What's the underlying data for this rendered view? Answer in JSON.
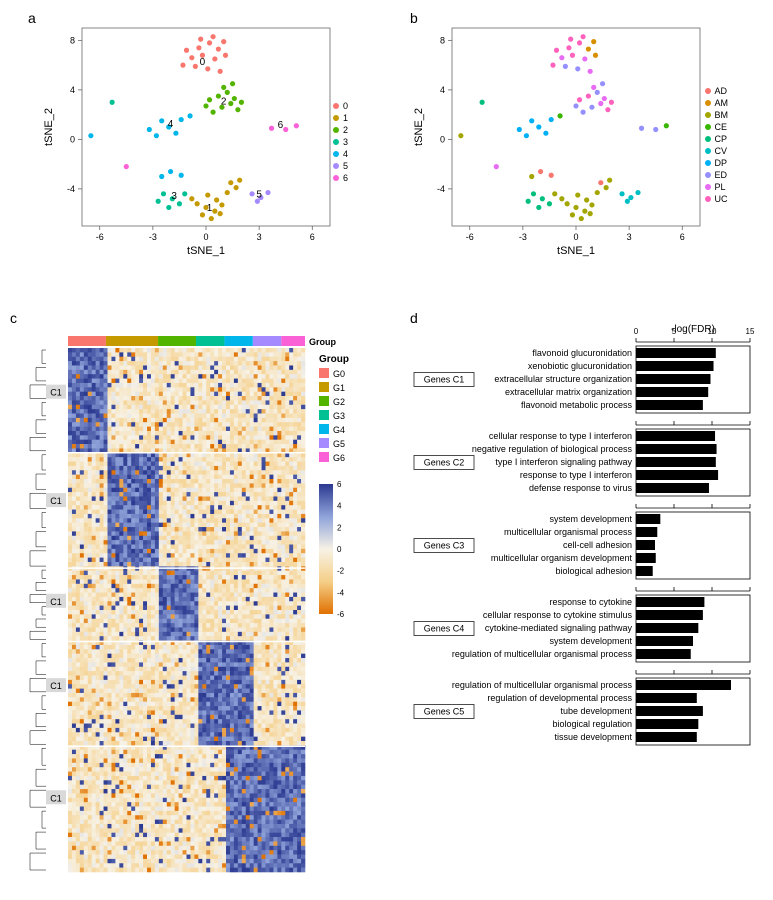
{
  "panels": {
    "a": "a",
    "b": "b",
    "c": "c",
    "d": "d"
  },
  "scatter": {
    "xlim": [
      -7,
      7
    ],
    "ylim": [
      -7,
      9
    ],
    "xticks": [
      -6,
      -3,
      0,
      3,
      6
    ],
    "yticks": [
      -4,
      0,
      4,
      8
    ],
    "xlabel": "tSNE_1",
    "ylabel": "tSNE_2"
  },
  "panelA": {
    "legend_title": "",
    "clusters": [
      "0",
      "1",
      "2",
      "3",
      "4",
      "5",
      "6"
    ],
    "cluster_colors": {
      "0": "#f8766d",
      "1": "#c49a00",
      "2": "#53b400",
      "3": "#00c094",
      "4": "#00b6eb",
      "5": "#a58aff",
      "6": "#fb61d7"
    },
    "cluster_label_pos": {
      "0": [
        -0.2,
        6.0
      ],
      "1": [
        0.2,
        -5.8
      ],
      "2": [
        1.0,
        2.8
      ],
      "3": [
        -1.8,
        -4.8
      ],
      "4": [
        -2.0,
        1.0
      ],
      "5": [
        3.0,
        -4.7
      ],
      "6": [
        4.2,
        0.9
      ]
    },
    "points": [
      {
        "x": -1.1,
        "y": 7.2,
        "c": "0"
      },
      {
        "x": -0.4,
        "y": 7.4,
        "c": "0"
      },
      {
        "x": 0.2,
        "y": 7.8,
        "c": "0"
      },
      {
        "x": 0.7,
        "y": 7.3,
        "c": "0"
      },
      {
        "x": -0.8,
        "y": 6.6,
        "c": "0"
      },
      {
        "x": -0.2,
        "y": 6.8,
        "c": "0"
      },
      {
        "x": 0.5,
        "y": 6.5,
        "c": "0"
      },
      {
        "x": 1.1,
        "y": 6.8,
        "c": "0"
      },
      {
        "x": -1.3,
        "y": 6.0,
        "c": "0"
      },
      {
        "x": -0.6,
        "y": 5.9,
        "c": "0"
      },
      {
        "x": 0.1,
        "y": 5.7,
        "c": "0"
      },
      {
        "x": 0.8,
        "y": 5.5,
        "c": "0"
      },
      {
        "x": -0.3,
        "y": 8.1,
        "c": "0"
      },
      {
        "x": 0.4,
        "y": 8.3,
        "c": "0"
      },
      {
        "x": 1.0,
        "y": 7.9,
        "c": "0"
      },
      {
        "x": -0.5,
        "y": -5.2,
        "c": "1"
      },
      {
        "x": 0.0,
        "y": -5.5,
        "c": "1"
      },
      {
        "x": 0.5,
        "y": -5.8,
        "c": "1"
      },
      {
        "x": 0.9,
        "y": -5.3,
        "c": "1"
      },
      {
        "x": -0.2,
        "y": -6.1,
        "c": "1"
      },
      {
        "x": 0.3,
        "y": -6.4,
        "c": "1"
      },
      {
        "x": 0.8,
        "y": -6.0,
        "c": "1"
      },
      {
        "x": -0.8,
        "y": -4.8,
        "c": "1"
      },
      {
        "x": 0.1,
        "y": -4.5,
        "c": "1"
      },
      {
        "x": 1.2,
        "y": -4.3,
        "c": "1"
      },
      {
        "x": 0.6,
        "y": -4.9,
        "c": "1"
      },
      {
        "x": 1.4,
        "y": -3.5,
        "c": "1"
      },
      {
        "x": 1.7,
        "y": -3.9,
        "c": "1"
      },
      {
        "x": 1.9,
        "y": -3.3,
        "c": "1"
      },
      {
        "x": 0.4,
        "y": 2.2,
        "c": "2"
      },
      {
        "x": 0.9,
        "y": 2.6,
        "c": "2"
      },
      {
        "x": 1.4,
        "y": 2.9,
        "c": "2"
      },
      {
        "x": 0.2,
        "y": 3.2,
        "c": "2"
      },
      {
        "x": 0.7,
        "y": 3.5,
        "c": "2"
      },
      {
        "x": 1.2,
        "y": 3.8,
        "c": "2"
      },
      {
        "x": 1.6,
        "y": 3.3,
        "c": "2"
      },
      {
        "x": 2.0,
        "y": 3.0,
        "c": "2"
      },
      {
        "x": 0.0,
        "y": 2.7,
        "c": "2"
      },
      {
        "x": 1.8,
        "y": 2.4,
        "c": "2"
      },
      {
        "x": 1.0,
        "y": 4.2,
        "c": "2"
      },
      {
        "x": 1.5,
        "y": 4.5,
        "c": "2"
      },
      {
        "x": -2.4,
        "y": -4.4,
        "c": "3"
      },
      {
        "x": -1.9,
        "y": -4.8,
        "c": "3"
      },
      {
        "x": -1.5,
        "y": -5.2,
        "c": "3"
      },
      {
        "x": -2.7,
        "y": -5.0,
        "c": "3"
      },
      {
        "x": -2.1,
        "y": -5.5,
        "c": "3"
      },
      {
        "x": -1.2,
        "y": -4.4,
        "c": "3"
      },
      {
        "x": -2.5,
        "y": 1.5,
        "c": "4"
      },
      {
        "x": -2.1,
        "y": 1.0,
        "c": "4"
      },
      {
        "x": -1.7,
        "y": 0.5,
        "c": "4"
      },
      {
        "x": -2.8,
        "y": 0.3,
        "c": "4"
      },
      {
        "x": -1.4,
        "y": 1.6,
        "c": "4"
      },
      {
        "x": -3.2,
        "y": 0.8,
        "c": "4"
      },
      {
        "x": -0.9,
        "y": 1.9,
        "c": "4"
      },
      {
        "x": -2.0,
        "y": -2.6,
        "c": "4"
      },
      {
        "x": -1.4,
        "y": -2.9,
        "c": "4"
      },
      {
        "x": -2.5,
        "y": -3.0,
        "c": "4"
      },
      {
        "x": 2.6,
        "y": -4.4,
        "c": "5"
      },
      {
        "x": 3.1,
        "y": -4.7,
        "c": "5"
      },
      {
        "x": 3.5,
        "y": -4.3,
        "c": "5"
      },
      {
        "x": 2.9,
        "y": -5.0,
        "c": "5"
      },
      {
        "x": 3.7,
        "y": 0.9,
        "c": "6"
      },
      {
        "x": 4.5,
        "y": 0.8,
        "c": "6"
      },
      {
        "x": 5.1,
        "y": 1.1,
        "c": "6"
      },
      {
        "x": -5.3,
        "y": 3.0,
        "c": "3"
      },
      {
        "x": -4.5,
        "y": -2.2,
        "c": "6"
      },
      {
        "x": -6.5,
        "y": 0.3,
        "c": "4"
      }
    ]
  },
  "panelB": {
    "types": [
      "AD",
      "AM",
      "BM",
      "CE",
      "CP",
      "CV",
      "DP",
      "ED",
      "PL",
      "UC"
    ],
    "type_colors": {
      "AD": "#f8766d",
      "AM": "#d89000",
      "BM": "#a3a500",
      "CE": "#39b600",
      "CP": "#00bf7d",
      "CV": "#00bfc4",
      "DP": "#00b0f6",
      "ED": "#9590ff",
      "PL": "#e76bf3",
      "UC": "#ff62bc"
    },
    "points": [
      {
        "x": -1.1,
        "y": 7.2,
        "c": "UC"
      },
      {
        "x": -0.4,
        "y": 7.4,
        "c": "UC"
      },
      {
        "x": 0.2,
        "y": 7.8,
        "c": "UC"
      },
      {
        "x": 0.7,
        "y": 7.3,
        "c": "AM"
      },
      {
        "x": -0.8,
        "y": 6.6,
        "c": "PL"
      },
      {
        "x": -0.2,
        "y": 6.8,
        "c": "UC"
      },
      {
        "x": 0.5,
        "y": 6.5,
        "c": "PL"
      },
      {
        "x": 1.1,
        "y": 6.8,
        "c": "AM"
      },
      {
        "x": -1.3,
        "y": 6.0,
        "c": "UC"
      },
      {
        "x": -0.6,
        "y": 5.9,
        "c": "ED"
      },
      {
        "x": 0.1,
        "y": 5.7,
        "c": "ED"
      },
      {
        "x": 0.8,
        "y": 5.5,
        "c": "PL"
      },
      {
        "x": -0.3,
        "y": 8.1,
        "c": "UC"
      },
      {
        "x": 0.4,
        "y": 8.3,
        "c": "UC"
      },
      {
        "x": 1.0,
        "y": 7.9,
        "c": "AM"
      },
      {
        "x": -0.5,
        "y": -5.2,
        "c": "BM"
      },
      {
        "x": 0.0,
        "y": -5.5,
        "c": "BM"
      },
      {
        "x": 0.5,
        "y": -5.8,
        "c": "BM"
      },
      {
        "x": 0.9,
        "y": -5.3,
        "c": "BM"
      },
      {
        "x": -0.2,
        "y": -6.1,
        "c": "BM"
      },
      {
        "x": 0.3,
        "y": -6.4,
        "c": "BM"
      },
      {
        "x": 0.8,
        "y": -6.0,
        "c": "BM"
      },
      {
        "x": -0.8,
        "y": -4.8,
        "c": "BM"
      },
      {
        "x": 0.1,
        "y": -4.5,
        "c": "BM"
      },
      {
        "x": 1.2,
        "y": -4.3,
        "c": "BM"
      },
      {
        "x": 0.6,
        "y": -4.9,
        "c": "BM"
      },
      {
        "x": 1.4,
        "y": -3.5,
        "c": "AD"
      },
      {
        "x": 1.7,
        "y": -3.9,
        "c": "BM"
      },
      {
        "x": 1.9,
        "y": -3.3,
        "c": "BM"
      },
      {
        "x": 0.4,
        "y": 2.2,
        "c": "ED"
      },
      {
        "x": 0.9,
        "y": 2.6,
        "c": "ED"
      },
      {
        "x": 1.4,
        "y": 2.9,
        "c": "PL"
      },
      {
        "x": 0.2,
        "y": 3.2,
        "c": "UC"
      },
      {
        "x": 0.7,
        "y": 3.5,
        "c": "UC"
      },
      {
        "x": 1.2,
        "y": 3.8,
        "c": "ED"
      },
      {
        "x": 1.6,
        "y": 3.3,
        "c": "PL"
      },
      {
        "x": 2.0,
        "y": 3.0,
        "c": "UC"
      },
      {
        "x": 0.0,
        "y": 2.7,
        "c": "ED"
      },
      {
        "x": 1.8,
        "y": 2.4,
        "c": "UC"
      },
      {
        "x": 1.0,
        "y": 4.2,
        "c": "PL"
      },
      {
        "x": 1.5,
        "y": 4.5,
        "c": "ED"
      },
      {
        "x": -2.4,
        "y": -4.4,
        "c": "CP"
      },
      {
        "x": -1.9,
        "y": -4.8,
        "c": "CP"
      },
      {
        "x": -1.5,
        "y": -5.2,
        "c": "CP"
      },
      {
        "x": -2.7,
        "y": -5.0,
        "c": "CP"
      },
      {
        "x": -2.1,
        "y": -5.5,
        "c": "CP"
      },
      {
        "x": -1.2,
        "y": -4.4,
        "c": "BM"
      },
      {
        "x": -2.5,
        "y": 1.5,
        "c": "DP"
      },
      {
        "x": -2.1,
        "y": 1.0,
        "c": "DP"
      },
      {
        "x": -1.7,
        "y": 0.5,
        "c": "DP"
      },
      {
        "x": -2.8,
        "y": 0.3,
        "c": "DP"
      },
      {
        "x": -1.4,
        "y": 1.6,
        "c": "DP"
      },
      {
        "x": -3.2,
        "y": 0.8,
        "c": "DP"
      },
      {
        "x": -0.9,
        "y": 1.9,
        "c": "CE"
      },
      {
        "x": -2.0,
        "y": -2.6,
        "c": "AD"
      },
      {
        "x": -1.4,
        "y": -2.9,
        "c": "AD"
      },
      {
        "x": -2.5,
        "y": -3.0,
        "c": "BM"
      },
      {
        "x": 2.6,
        "y": -4.4,
        "c": "CV"
      },
      {
        "x": 3.1,
        "y": -4.7,
        "c": "CV"
      },
      {
        "x": 3.5,
        "y": -4.3,
        "c": "CV"
      },
      {
        "x": 2.9,
        "y": -5.0,
        "c": "CV"
      },
      {
        "x": 3.7,
        "y": 0.9,
        "c": "ED"
      },
      {
        "x": 4.5,
        "y": 0.8,
        "c": "ED"
      },
      {
        "x": 5.1,
        "y": 1.1,
        "c": "CE"
      },
      {
        "x": -5.3,
        "y": 3.0,
        "c": "CP"
      },
      {
        "x": -4.5,
        "y": -2.2,
        "c": "PL"
      },
      {
        "x": -6.5,
        "y": 0.3,
        "c": "BM"
      }
    ]
  },
  "panelC": {
    "title_group": "Group",
    "groups": [
      "G0",
      "G1",
      "G2",
      "G3",
      "G4",
      "G5",
      "G6"
    ],
    "group_colors": {
      "G0": "#f8766d",
      "G1": "#c49a00",
      "G2": "#53b400",
      "G3": "#00c094",
      "G4": "#00b6eb",
      "G5": "#a58aff",
      "G6": "#fb61d7"
    },
    "group_widths": [
      0.16,
      0.22,
      0.16,
      0.12,
      0.12,
      0.12,
      0.1
    ],
    "row_block_heights": [
      0.2,
      0.22,
      0.14,
      0.2,
      0.24
    ],
    "row_label": "C1",
    "scale_ticks": [
      6,
      4,
      2,
      0,
      -2,
      -4,
      -6
    ],
    "scale_colors": [
      "#2b3990",
      "#6b7fc7",
      "#b9c6e6",
      "#f7f2e6",
      "#f5cf88",
      "#ec9a2c",
      "#e07000"
    ]
  },
  "panelD": {
    "axis_label": "-log(FDR)",
    "xmax": 15,
    "xticks": [
      0,
      5,
      10,
      15
    ],
    "bar_color": "#000000",
    "groups": [
      {
        "label": "Genes  C1",
        "terms": [
          {
            "t": "flavonoid glucuronidation",
            "v": 10.5
          },
          {
            "t": "xenobiotic glucuronidation",
            "v": 10.2
          },
          {
            "t": "extracellular structure organization",
            "v": 9.8
          },
          {
            "t": "extracellular matrix organization",
            "v": 9.5
          },
          {
            "t": "flavonoid metabolic process",
            "v": 8.8
          }
        ]
      },
      {
        "label": "Genes  C2",
        "terms": [
          {
            "t": "cellular response to type I interferon",
            "v": 10.4
          },
          {
            "t": "negative regulation of biological process",
            "v": 10.6
          },
          {
            "t": "type I interferon signaling pathway",
            "v": 10.5
          },
          {
            "t": "response to type I interferon",
            "v": 10.8
          },
          {
            "t": "defense response to virus",
            "v": 9.6
          }
        ]
      },
      {
        "label": "Genes  C3",
        "terms": [
          {
            "t": "system development",
            "v": 3.2
          },
          {
            "t": "multicellular organismal process",
            "v": 2.8
          },
          {
            "t": "cell-cell adhesion",
            "v": 2.5
          },
          {
            "t": "multicellular organism development",
            "v": 2.6
          },
          {
            "t": "biological adhesion",
            "v": 2.2
          }
        ]
      },
      {
        "label": "Genes  C4",
        "terms": [
          {
            "t": "response to cytokine",
            "v": 9.0
          },
          {
            "t": "cellular response to cytokine stimulus",
            "v": 8.8
          },
          {
            "t": "cytokine-mediated signaling pathway",
            "v": 8.2
          },
          {
            "t": "system development",
            "v": 7.5
          },
          {
            "t": "regulation of multicellular organismal process",
            "v": 7.2
          }
        ]
      },
      {
        "label": "Genes  C5",
        "terms": [
          {
            "t": "regulation of multicellular organismal process",
            "v": 12.5
          },
          {
            "t": "regulation of developmental process",
            "v": 8.0
          },
          {
            "t": "tube development",
            "v": 8.8
          },
          {
            "t": "biological regulation",
            "v": 8.2
          },
          {
            "t": "tissue development",
            "v": 8.0
          }
        ]
      }
    ]
  }
}
